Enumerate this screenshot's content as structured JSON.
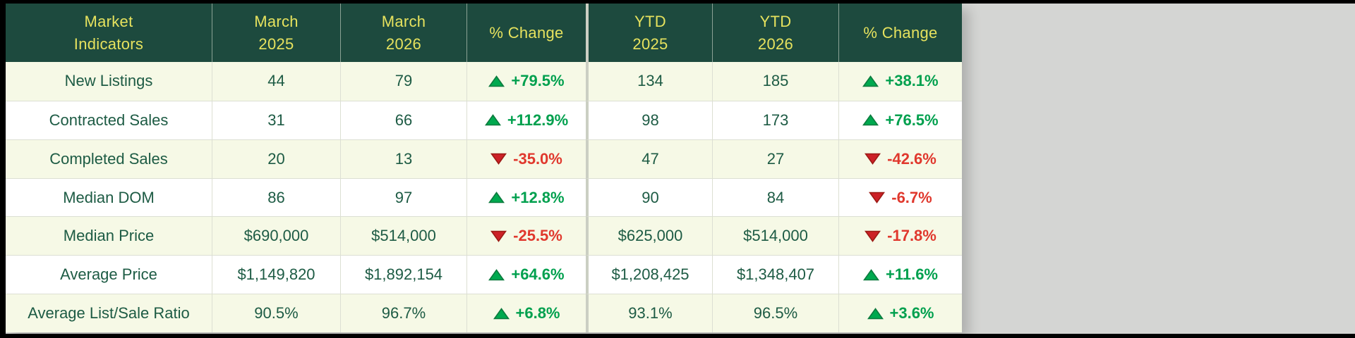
{
  "colors": {
    "header_bg": "#1d4a3e",
    "header_text": "#e6e25e",
    "row_alt": "#f6f9e6",
    "row_white": "#ffffff",
    "body_text": "#1d5b44",
    "pos_text": "#00a04e",
    "neg_text": "#e0382d",
    "up_fill": "#00a94f",
    "up_edge": "#0c7a3e",
    "down_fill": "#cc2127",
    "down_edge": "#9c1b15",
    "canvas_gray": "#d4d5d3",
    "frame_black": "#000000"
  },
  "table": {
    "header": [
      {
        "line1": "Market",
        "line2": "Indicators"
      },
      {
        "line1": "March",
        "line2": "2025"
      },
      {
        "line1": "March",
        "line2": "2026"
      },
      {
        "line1": "% Change",
        "line2": ""
      },
      {
        "line1": "YTD",
        "line2": "2025"
      },
      {
        "line1": "YTD",
        "line2": "2026"
      },
      {
        "line1": "% Change",
        "line2": ""
      }
    ],
    "rows": [
      {
        "label": "New Listings",
        "march_2025": "44",
        "march_2026": "79",
        "mom_change": "+79.5%",
        "mom_dir": "up",
        "ytd_2025": "134",
        "ytd_2026": "185",
        "ytd_change": "+38.1%",
        "ytd_dir": "up"
      },
      {
        "label": "Contracted Sales",
        "march_2025": "31",
        "march_2026": "66",
        "mom_change": "+112.9%",
        "mom_dir": "up",
        "ytd_2025": "98",
        "ytd_2026": "173",
        "ytd_change": "+76.5%",
        "ytd_dir": "up"
      },
      {
        "label": "Completed Sales",
        "march_2025": "20",
        "march_2026": "13",
        "mom_change": "-35.0%",
        "mom_dir": "down",
        "ytd_2025": "47",
        "ytd_2026": "27",
        "ytd_change": "-42.6%",
        "ytd_dir": "down"
      },
      {
        "label": "Median DOM",
        "march_2025": "86",
        "march_2026": "97",
        "mom_change": "+12.8%",
        "mom_dir": "up",
        "ytd_2025": "90",
        "ytd_2026": "84",
        "ytd_change": "-6.7%",
        "ytd_dir": "down"
      },
      {
        "label": "Median Price",
        "march_2025": "$690,000",
        "march_2026": "$514,000",
        "mom_change": "-25.5%",
        "mom_dir": "down",
        "ytd_2025": "$625,000",
        "ytd_2026": "$514,000",
        "ytd_change": "-17.8%",
        "ytd_dir": "down"
      },
      {
        "label": "Average Price",
        "march_2025": "$1,149,820",
        "march_2026": "$1,892,154",
        "mom_change": "+64.6%",
        "mom_dir": "up",
        "ytd_2025": "$1,208,425",
        "ytd_2026": "$1,348,407",
        "ytd_change": "+11.6%",
        "ytd_dir": "up"
      },
      {
        "label": "Average List/Sale Ratio",
        "march_2025": "90.5%",
        "march_2026": "96.7%",
        "mom_change": "+6.8%",
        "mom_dir": "up",
        "ytd_2025": "93.1%",
        "ytd_2026": "96.5%",
        "ytd_change": "+3.6%",
        "ytd_dir": "up"
      }
    ]
  },
  "chart_data": {
    "type": "table",
    "title": "Market Indicators",
    "columns": [
      "Market Indicators",
      "March 2025",
      "March 2026",
      "% Change",
      "YTD 2025",
      "YTD 2026",
      "% Change"
    ],
    "rows": [
      [
        "New Listings",
        44,
        79,
        79.5,
        134,
        185,
        38.1
      ],
      [
        "Contracted Sales",
        31,
        66,
        112.9,
        98,
        173,
        76.5
      ],
      [
        "Completed Sales",
        20,
        13,
        -35.0,
        47,
        27,
        -42.6
      ],
      [
        "Median DOM",
        86,
        97,
        12.8,
        90,
        84,
        -6.7
      ],
      [
        "Median Price",
        690000,
        514000,
        -25.5,
        625000,
        514000,
        -17.8
      ],
      [
        "Average Price",
        1149820,
        1892154,
        64.6,
        1208425,
        1348407,
        11.6
      ],
      [
        "Average List/Sale Ratio",
        90.5,
        96.7,
        6.8,
        93.1,
        96.5,
        3.6
      ]
    ],
    "notes": "Percent-change columns rendered with green up / red down triangles"
  }
}
